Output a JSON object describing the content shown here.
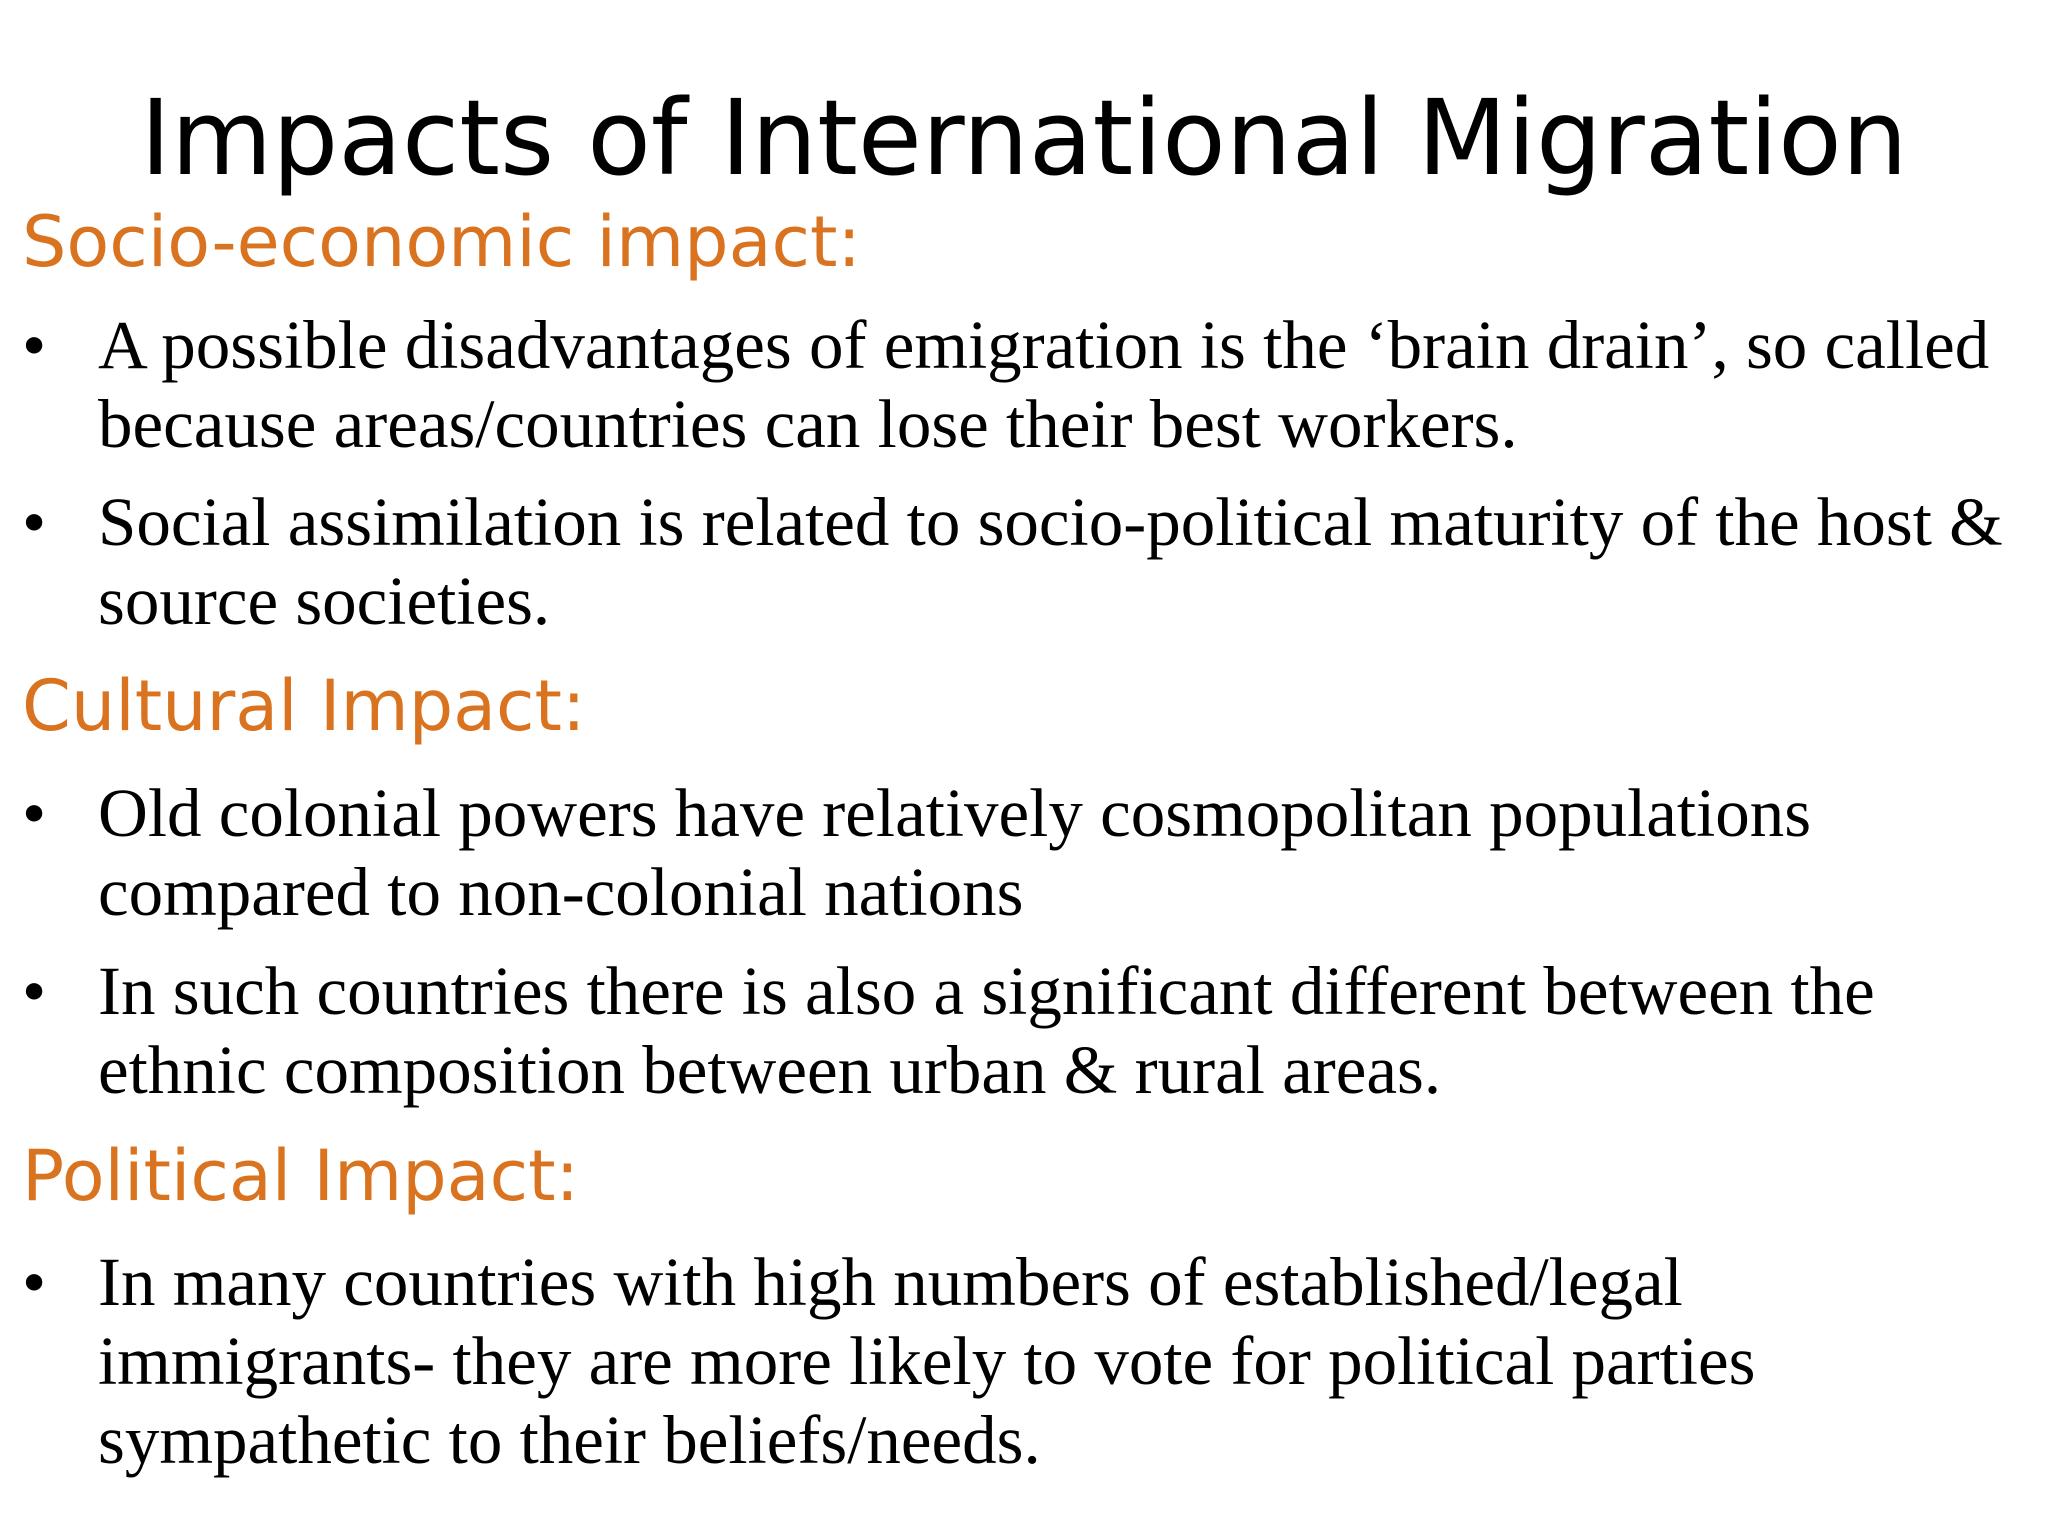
{
  "title": "Impacts of International Migration",
  "accent_color": "#D9731F",
  "sections": [
    {
      "heading": "Socio-economic impact:",
      "bullets": [
        "A possible disadvantages of emigration is the ‘brain drain’, so called because areas/countries can lose their best workers.",
        "Social assimilation is related to socio-political maturity of the host & source societies."
      ]
    },
    {
      "heading": "Cultural Impact:",
      "bullets": [
        "Old colonial powers have relatively cosmopolitan populations compared to non-colonial nations",
        "In such countries there is also a significant different between the ethnic composition between urban & rural areas."
      ]
    },
    {
      "heading": "Political Impact:",
      "bullets": [
        "In many countries with high numbers of established/legal immigrants- they are more likely to vote for political parties sympathetic to their beliefs/needs."
      ]
    }
  ],
  "bullet_char": "•"
}
